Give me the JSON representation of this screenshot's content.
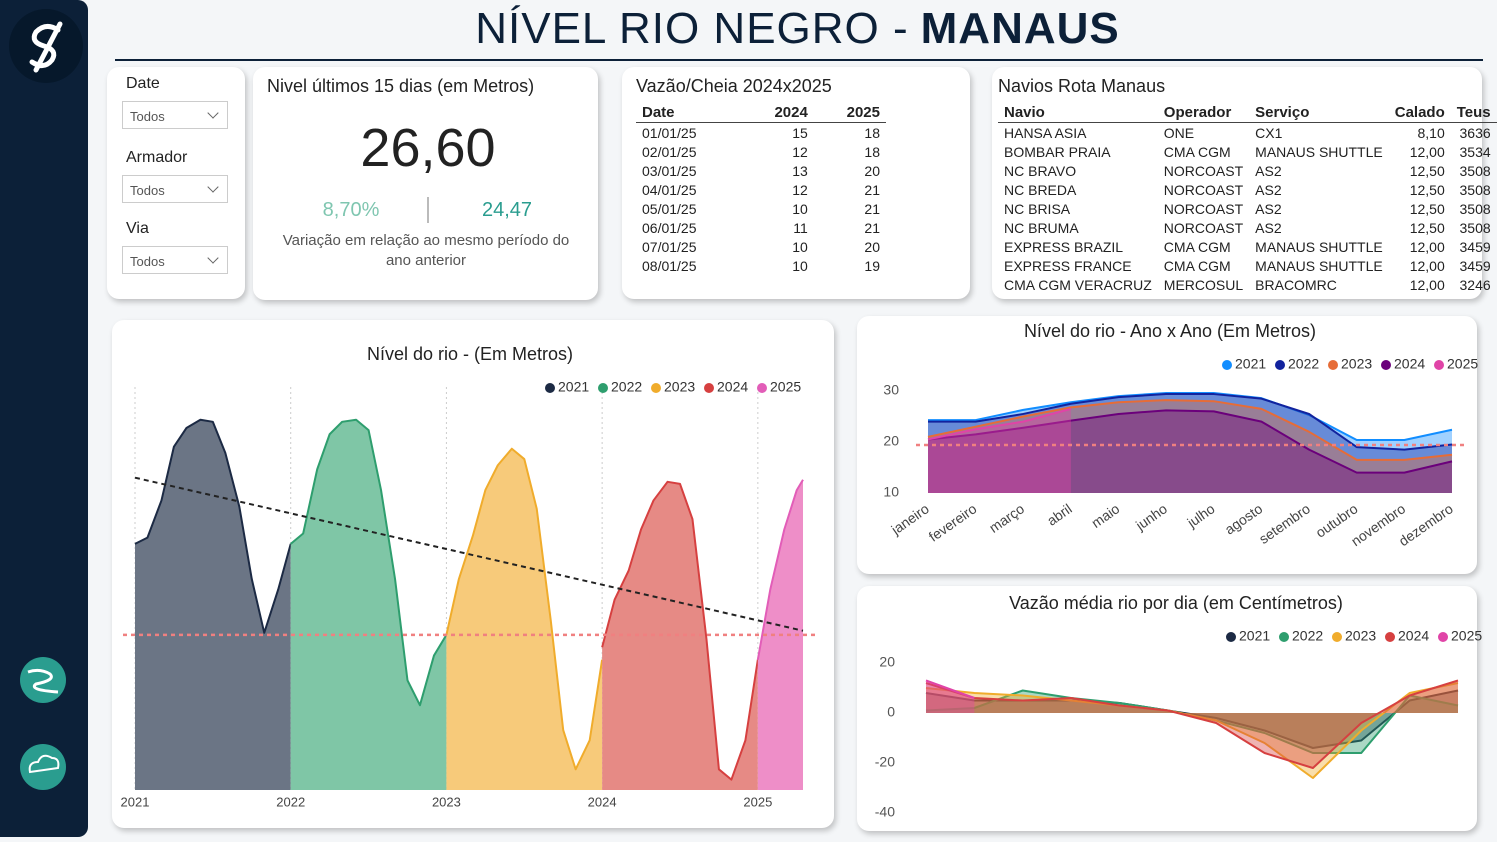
{
  "header": {
    "title": "NÍVEL RIO NEGRO -",
    "title_bold": "MANAUS"
  },
  "filters": [
    {
      "label": "Date",
      "value": "Todos"
    },
    {
      "label": "Armador",
      "value": "Todos"
    },
    {
      "label": "Via",
      "value": "Todos"
    }
  ],
  "kpi": {
    "title": "Nivel últimos 15 dias (em Metros)",
    "value": "26,60",
    "change": "8,70%",
    "previous": "24,47",
    "caption": "Variação em relação ao mesmo período do ano anterior"
  },
  "tables": {
    "vazao": {
      "title": "Vazão/Cheia 2024x2025",
      "columns": [
        "Date",
        "2024",
        "2025"
      ],
      "rows": [
        [
          "01/01/25",
          "15",
          "18"
        ],
        [
          "02/01/25",
          "12",
          "18"
        ],
        [
          "03/01/25",
          "13",
          "20"
        ],
        [
          "04/01/25",
          "12",
          "21"
        ],
        [
          "05/01/25",
          "10",
          "21"
        ],
        [
          "06/01/25",
          "11",
          "21"
        ],
        [
          "07/01/25",
          "10",
          "20"
        ],
        [
          "08/01/25",
          "10",
          "19"
        ]
      ]
    },
    "navios": {
      "title": "Navios Rota Manaus",
      "columns": [
        "Navio",
        "Operador",
        "Serviço",
        "Calado",
        "Teus"
      ],
      "rows": [
        [
          "HANSA ASIA",
          "ONE",
          "CX1",
          "8,10",
          "3636"
        ],
        [
          "BOMBAR PRAIA",
          "CMA CGM",
          "MANAUS SHUTTLE",
          "12,00",
          "3534"
        ],
        [
          "NC BRAVO",
          "NORCOAST",
          "AS2",
          "12,50",
          "3508"
        ],
        [
          "NC BREDA",
          "NORCOAST",
          "AS2",
          "12,50",
          "3508"
        ],
        [
          "NC BRISA",
          "NORCOAST",
          "AS2",
          "12,50",
          "3508"
        ],
        [
          "NC BRUMA",
          "NORCOAST",
          "AS2",
          "12,50",
          "3508"
        ],
        [
          "EXPRESS BRAZIL",
          "CMA CGM",
          "MANAUS SHUTTLE",
          "12,00",
          "3459"
        ],
        [
          "EXPRESS FRANCE",
          "CMA CGM",
          "MANAUS SHUTTLE",
          "12,00",
          "3459"
        ],
        [
          "CMA CGM VERACRUZ",
          "MERCOSUL",
          "BRACOMRC",
          "12,00",
          "3246"
        ]
      ]
    }
  },
  "chart_data": [
    {
      "type": "area",
      "title": "Nível do rio - (Em Metros)",
      "xlim": [
        2021,
        2025.29
      ],
      "xticks": [
        2021,
        2022,
        2023,
        2024,
        2025
      ],
      "ylim": [
        12,
        31
      ],
      "grid": true,
      "reference_line": 19.5,
      "trend": {
        "x": [
          2021,
          2025.29
        ],
        "values": [
          27.1,
          19.7
        ]
      },
      "series": [
        {
          "name": "2021",
          "color": "#1c2a44",
          "fill": "#6b7585",
          "x": [
            2021,
            2021.08,
            2021.17,
            2021.25,
            2021.33,
            2021.42,
            2021.5,
            2021.58,
            2021.67,
            2021.75,
            2021.83,
            2021.92,
            2022
          ],
          "values": [
            23.9,
            24.2,
            26.0,
            28.6,
            29.5,
            29.9,
            29.8,
            28.3,
            25.7,
            22.2,
            19.6,
            21.7,
            23.9
          ]
        },
        {
          "name": "2022",
          "color": "#2e9e6e",
          "fill": "#7fc6a6",
          "x": [
            2022,
            2022.08,
            2022.17,
            2022.25,
            2022.33,
            2022.42,
            2022.5,
            2022.58,
            2022.67,
            2022.75,
            2022.83,
            2022.92,
            2023
          ],
          "values": [
            23.9,
            24.4,
            27.5,
            29.2,
            29.8,
            29.9,
            29.4,
            26.5,
            22.2,
            17.3,
            16.1,
            18.5,
            19.5
          ]
        },
        {
          "name": "2023",
          "color": "#f0ac2c",
          "fill": "#f7ca7a",
          "x": [
            2023,
            2023.08,
            2023.17,
            2023.25,
            2023.33,
            2023.42,
            2023.5,
            2023.58,
            2023.67,
            2023.75,
            2023.83,
            2023.92,
            2024
          ],
          "values": [
            19.5,
            22.2,
            24.3,
            26.5,
            27.7,
            28.5,
            28.0,
            25.6,
            20.2,
            14.9,
            13.0,
            14.4,
            18.3
          ]
        },
        {
          "name": "2024",
          "color": "#d64040",
          "fill": "#e68a85",
          "x": [
            2024,
            2024.08,
            2024.17,
            2024.25,
            2024.33,
            2024.42,
            2024.5,
            2024.58,
            2024.67,
            2024.75,
            2024.83,
            2024.92,
            2025
          ],
          "values": [
            18.9,
            21.2,
            22.6,
            24.6,
            26.0,
            26.9,
            26.8,
            25.1,
            19.3,
            13.0,
            12.5,
            14.4,
            18.3
          ]
        },
        {
          "name": "2025",
          "color": "#e25db8",
          "fill": "#ee8ec8",
          "x": [
            2025,
            2025.08,
            2025.17,
            2025.25,
            2025.29
          ],
          "values": [
            18.3,
            21.7,
            24.6,
            26.5,
            27.0
          ]
        }
      ]
    },
    {
      "type": "area",
      "title": "Nível do rio - Ano x Ano (Em Metros)",
      "categories": [
        "janeiro",
        "fevereiro",
        "março",
        "abril",
        "maio",
        "junho",
        "julho",
        "agosto",
        "setembro",
        "outubro",
        "novembro",
        "dezembro"
      ],
      "ylim": [
        10,
        30
      ],
      "yticks": [
        10,
        20,
        30
      ],
      "reference_line": 19.4,
      "series": [
        {
          "name": "2021",
          "color": "#118dff",
          "values": [
            24.3,
            24.3,
            26.3,
            27.8,
            29.0,
            29.6,
            29.6,
            28.6,
            25.3,
            20.4,
            20.4,
            22.4
          ]
        },
        {
          "name": "2022",
          "color": "#12239e",
          "values": [
            24.0,
            24.0,
            25.5,
            27.5,
            28.8,
            29.4,
            29.4,
            28.5,
            25.5,
            19.0,
            18.5,
            19.5
          ]
        },
        {
          "name": "2023",
          "color": "#e66c37",
          "values": [
            21.0,
            23.0,
            25.0,
            26.8,
            27.8,
            28.2,
            28.0,
            26.5,
            22.0,
            16.5,
            16.5,
            17.5
          ]
        },
        {
          "name": "2024",
          "color": "#6b007b",
          "values": [
            20.5,
            21.5,
            22.8,
            24.2,
            25.5,
            26.2,
            26.0,
            24.0,
            18.5,
            14.0,
            14.0,
            16.2
          ]
        },
        {
          "name": "2025",
          "color": "#e044a7",
          "values": [
            20.5,
            22.5,
            24.0,
            26.5,
            null,
            null,
            null,
            null,
            null,
            null,
            null,
            null
          ]
        }
      ]
    },
    {
      "type": "area",
      "title": "Vazão média rio por dia (em Centímetros)",
      "categories": [
        null,
        null,
        null,
        null,
        null,
        null,
        null,
        null,
        null,
        null,
        null,
        null
      ],
      "ylim": [
        -40,
        20
      ],
      "yticks": [
        20,
        0,
        -20,
        -40
      ],
      "series": [
        {
          "name": "2021",
          "color": "#1c2a44",
          "values": [
            8,
            5,
            5,
            5,
            4,
            1,
            -2,
            -7,
            -14,
            -11,
            5,
            9
          ]
        },
        {
          "name": "2022",
          "color": "#2e9e6e",
          "values": [
            1,
            2,
            9,
            6,
            4,
            1,
            -3,
            -8,
            -16,
            -16,
            7,
            3
          ]
        },
        {
          "name": "2023",
          "color": "#f0ac2c",
          "values": [
            10,
            8,
            7,
            5,
            3,
            1,
            -3,
            -12,
            -26,
            -7,
            8,
            12
          ]
        },
        {
          "name": "2024",
          "color": "#d64040",
          "values": [
            12,
            6,
            5,
            6,
            3,
            1,
            -4,
            -16,
            -22,
            -4,
            7,
            13
          ]
        },
        {
          "name": "2025",
          "color": "#e044a7",
          "values": [
            13,
            6,
            null,
            null,
            null,
            null,
            null,
            null,
            null,
            null,
            null,
            null
          ]
        }
      ]
    }
  ]
}
